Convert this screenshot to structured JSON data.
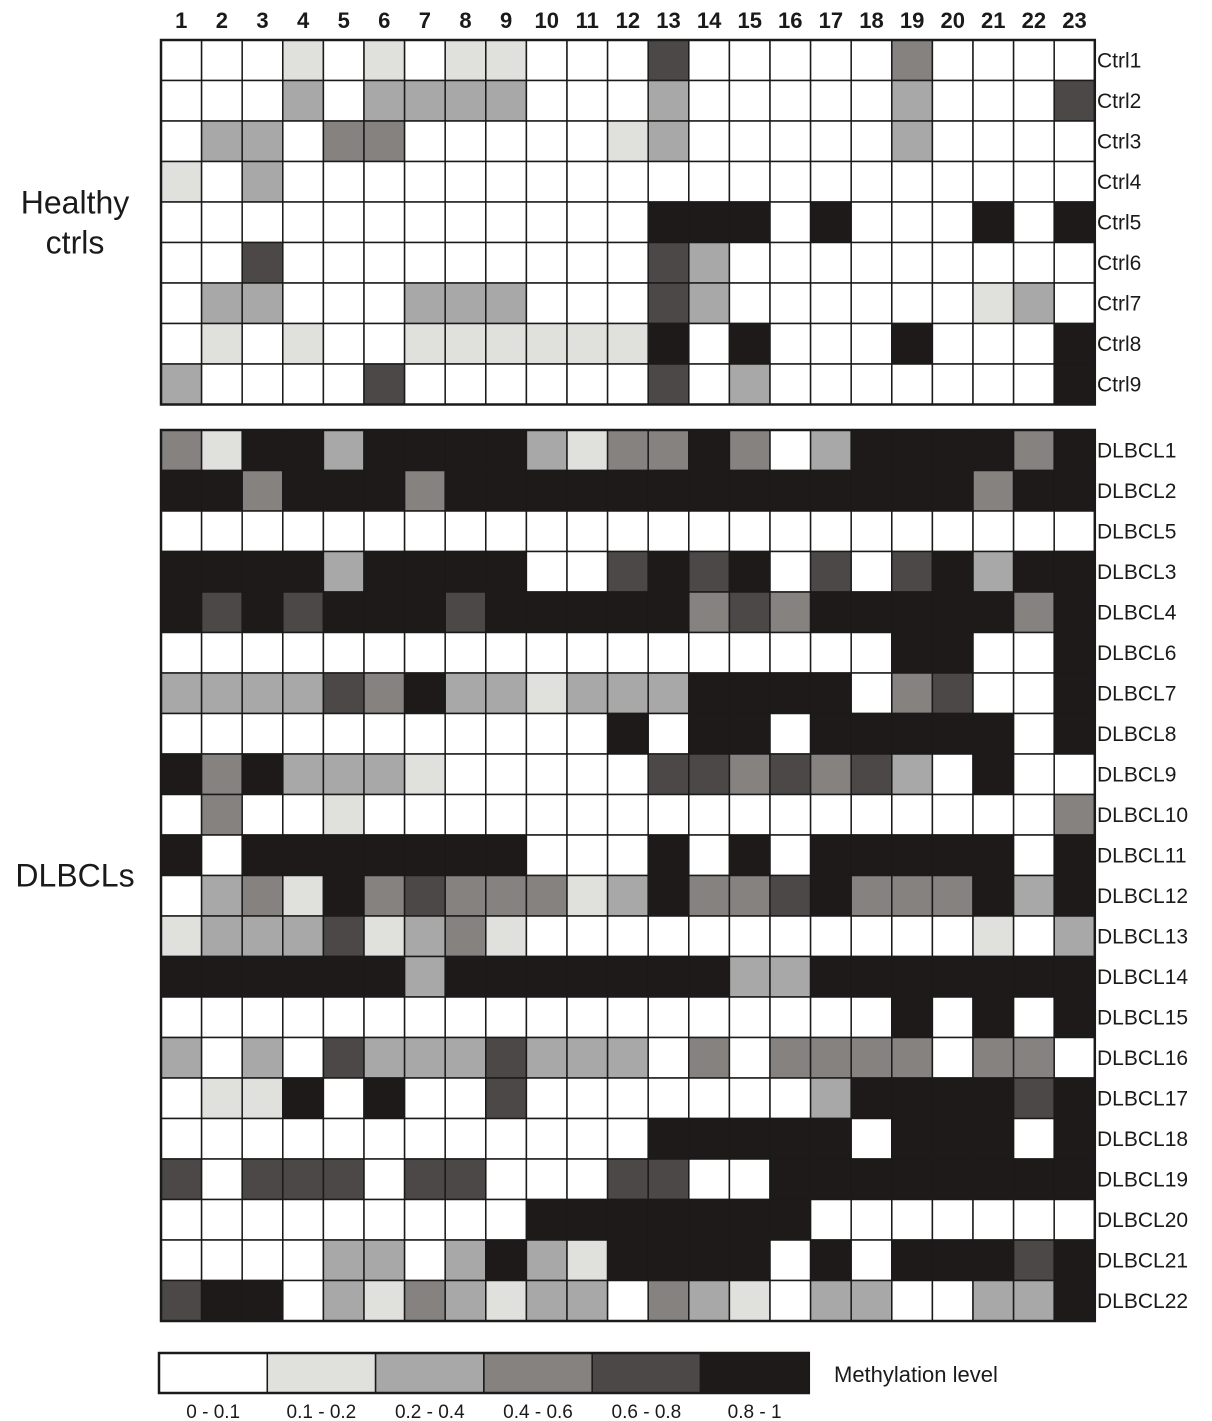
{
  "chart_data": {
    "type": "heatmap",
    "columns": [
      "1",
      "2",
      "3",
      "4",
      "5",
      "6",
      "7",
      "8",
      "9",
      "10",
      "11",
      "12",
      "13",
      "14",
      "15",
      "16",
      "17",
      "18",
      "19",
      "20",
      "21",
      "22",
      "23"
    ],
    "bins": [
      {
        "range": "0 - 0.1",
        "color": "#ffffff"
      },
      {
        "range": "0.1 - 0.2",
        "color": "#e0e0dc"
      },
      {
        "range": "0.2 - 0.4",
        "color": "#a8a8a8"
      },
      {
        "range": "0.4 - 0.6",
        "color": "#858280"
      },
      {
        "range": "0.6 - 0.8",
        "color": "#4b4847"
      },
      {
        "range": "0.8 - 1",
        "color": "#1e1a19"
      }
    ],
    "legend_title": "Methylation level",
    "groups": [
      {
        "label_lines": [
          "Healthy",
          "ctrls"
        ],
        "rows": [
          {
            "label": "Ctrl1",
            "values": [
              0,
              0,
              0,
              1,
              0,
              1,
              0,
              1,
              1,
              0,
              0,
              0,
              4,
              0,
              0,
              0,
              0,
              0,
              3,
              0,
              0,
              0,
              0
            ]
          },
          {
            "label": "Ctrl2",
            "values": [
              0,
              0,
              0,
              2,
              0,
              2,
              2,
              2,
              2,
              0,
              0,
              0,
              2,
              0,
              0,
              0,
              0,
              0,
              2,
              0,
              0,
              0,
              4
            ]
          },
          {
            "label": "Ctrl3",
            "values": [
              0,
              2,
              2,
              0,
              3,
              3,
              0,
              0,
              0,
              0,
              0,
              1,
              2,
              0,
              0,
              0,
              0,
              0,
              2,
              0,
              0,
              0,
              0
            ]
          },
          {
            "label": "Ctrl4",
            "values": [
              1,
              0,
              2,
              0,
              0,
              0,
              0,
              0,
              0,
              0,
              0,
              0,
              0,
              0,
              0,
              0,
              0,
              0,
              0,
              0,
              0,
              0,
              0
            ]
          },
          {
            "label": "Ctrl5",
            "values": [
              0,
              0,
              0,
              0,
              0,
              0,
              0,
              0,
              0,
              0,
              0,
              0,
              5,
              5,
              5,
              0,
              5,
              0,
              0,
              0,
              5,
              0,
              5
            ]
          },
          {
            "label": "Ctrl6",
            "values": [
              0,
              0,
              4,
              0,
              0,
              0,
              0,
              0,
              0,
              0,
              0,
              0,
              4,
              2,
              0,
              0,
              0,
              0,
              0,
              0,
              0,
              0,
              0
            ]
          },
          {
            "label": "Ctrl7",
            "values": [
              0,
              2,
              2,
              0,
              0,
              0,
              2,
              2,
              2,
              0,
              0,
              0,
              4,
              2,
              0,
              0,
              0,
              0,
              0,
              0,
              1,
              2,
              0
            ]
          },
          {
            "label": "Ctrl8",
            "values": [
              0,
              1,
              0,
              1,
              0,
              0,
              1,
              1,
              1,
              1,
              1,
              1,
              5,
              0,
              5,
              0,
              0,
              0,
              5,
              0,
              0,
              0,
              5
            ]
          },
          {
            "label": "Ctrl9",
            "values": [
              2,
              0,
              0,
              0,
              0,
              4,
              0,
              0,
              0,
              0,
              0,
              0,
              4,
              0,
              2,
              0,
              0,
              0,
              0,
              0,
              0,
              0,
              5
            ]
          }
        ]
      },
      {
        "label_lines": [
          "DLBCLs"
        ],
        "rows": [
          {
            "label": "DLBCL1",
            "values": [
              3,
              1,
              5,
              5,
              2,
              5,
              5,
              5,
              5,
              2,
              1,
              3,
              3,
              5,
              3,
              0,
              2,
              5,
              5,
              5,
              5,
              3,
              5
            ]
          },
          {
            "label": "DLBCL2",
            "values": [
              5,
              5,
              3,
              5,
              5,
              5,
              3,
              5,
              5,
              5,
              5,
              5,
              5,
              5,
              5,
              5,
              5,
              5,
              5,
              5,
              3,
              5,
              5
            ]
          },
          {
            "label": "DLBCL5",
            "values": [
              0,
              0,
              0,
              0,
              0,
              0,
              0,
              0,
              0,
              0,
              0,
              0,
              0,
              0,
              0,
              0,
              0,
              0,
              0,
              0,
              0,
              0,
              0
            ]
          },
          {
            "label": "DLBCL3",
            "values": [
              5,
              5,
              5,
              5,
              2,
              5,
              5,
              5,
              5,
              0,
              0,
              4,
              5,
              4,
              5,
              0,
              4,
              0,
              4,
              5,
              2,
              5,
              5
            ]
          },
          {
            "label": "DLBCL4",
            "values": [
              5,
              4,
              5,
              4,
              5,
              5,
              5,
              4,
              5,
              5,
              5,
              5,
              5,
              3,
              4,
              3,
              5,
              5,
              5,
              5,
              5,
              3,
              5
            ]
          },
          {
            "label": "DLBCL6",
            "values": [
              0,
              0,
              0,
              0,
              0,
              0,
              0,
              0,
              0,
              0,
              0,
              0,
              0,
              0,
              0,
              0,
              0,
              0,
              5,
              5,
              0,
              0,
              5
            ]
          },
          {
            "label": "DLBCL7",
            "values": [
              2,
              2,
              2,
              2,
              4,
              3,
              5,
              2,
              2,
              1,
              2,
              2,
              2,
              5,
              5,
              5,
              5,
              0,
              3,
              4,
              0,
              0,
              5
            ]
          },
          {
            "label": "DLBCL8",
            "values": [
              0,
              0,
              0,
              0,
              0,
              0,
              0,
              0,
              0,
              0,
              0,
              5,
              0,
              5,
              5,
              0,
              5,
              5,
              5,
              5,
              5,
              0,
              5
            ]
          },
          {
            "label": "DLBCL9",
            "values": [
              5,
              3,
              5,
              2,
              2,
              2,
              1,
              0,
              0,
              0,
              0,
              0,
              4,
              4,
              3,
              4,
              3,
              4,
              2,
              0,
              5,
              0,
              0
            ]
          },
          {
            "label": "DLBCL10",
            "values": [
              0,
              3,
              0,
              0,
              1,
              0,
              0,
              0,
              0,
              0,
              0,
              0,
              0,
              0,
              0,
              0,
              0,
              0,
              0,
              0,
              0,
              0,
              3
            ]
          },
          {
            "label": "DLBCL11",
            "values": [
              5,
              0,
              5,
              5,
              5,
              5,
              5,
              5,
              5,
              0,
              0,
              0,
              5,
              0,
              5,
              0,
              5,
              5,
              5,
              5,
              5,
              0,
              5
            ]
          },
          {
            "label": "DLBCL12",
            "values": [
              0,
              2,
              3,
              1,
              5,
              3,
              4,
              3,
              3,
              3,
              1,
              2,
              5,
              3,
              3,
              4,
              5,
              3,
              3,
              3,
              5,
              2,
              5
            ]
          },
          {
            "label": "DLBCL13",
            "values": [
              1,
              2,
              2,
              2,
              4,
              1,
              2,
              3,
              1,
              0,
              0,
              0,
              0,
              0,
              0,
              0,
              0,
              0,
              0,
              0,
              1,
              0,
              2
            ]
          },
          {
            "label": "DLBCL14",
            "values": [
              5,
              5,
              5,
              5,
              5,
              5,
              2,
              5,
              5,
              5,
              5,
              5,
              5,
              5,
              2,
              2,
              5,
              5,
              5,
              5,
              5,
              5,
              5
            ]
          },
          {
            "label": "DLBCL15",
            "values": [
              0,
              0,
              0,
              0,
              0,
              0,
              0,
              0,
              0,
              0,
              0,
              0,
              0,
              0,
              0,
              0,
              0,
              0,
              5,
              0,
              5,
              0,
              5
            ]
          },
          {
            "label": "DLBCL16",
            "values": [
              2,
              0,
              2,
              0,
              4,
              2,
              2,
              2,
              4,
              2,
              2,
              2,
              0,
              3,
              0,
              3,
              3,
              3,
              3,
              0,
              3,
              3,
              0
            ]
          },
          {
            "label": "DLBCL17",
            "values": [
              0,
              1,
              1,
              5,
              0,
              5,
              0,
              0,
              4,
              0,
              0,
              0,
              0,
              0,
              0,
              0,
              2,
              5,
              5,
              5,
              5,
              4,
              5
            ]
          },
          {
            "label": "DLBCL18",
            "values": [
              0,
              0,
              0,
              0,
              0,
              0,
              0,
              0,
              0,
              0,
              0,
              0,
              5,
              5,
              5,
              5,
              5,
              0,
              5,
              5,
              5,
              0,
              5
            ]
          },
          {
            "label": "DLBCL19",
            "values": [
              4,
              0,
              4,
              4,
              4,
              0,
              4,
              4,
              0,
              0,
              0,
              4,
              4,
              0,
              0,
              5,
              5,
              5,
              5,
              5,
              5,
              5,
              5
            ]
          },
          {
            "label": "DLBCL20",
            "values": [
              0,
              0,
              0,
              0,
              0,
              0,
              0,
              0,
              0,
              5,
              5,
              5,
              5,
              5,
              5,
              5,
              0,
              0,
              0,
              0,
              0,
              0,
              0
            ]
          },
          {
            "label": "DLBCL21",
            "values": [
              0,
              0,
              0,
              0,
              2,
              2,
              0,
              2,
              5,
              2,
              1,
              5,
              5,
              5,
              5,
              0,
              5,
              0,
              5,
              5,
              5,
              4,
              5
            ]
          },
          {
            "label": "DLBCL22",
            "values": [
              4,
              5,
              5,
              0,
              2,
              1,
              3,
              2,
              1,
              2,
              2,
              0,
              3,
              2,
              1,
              0,
              2,
              2,
              0,
              0,
              2,
              2,
              5
            ]
          }
        ]
      }
    ]
  }
}
